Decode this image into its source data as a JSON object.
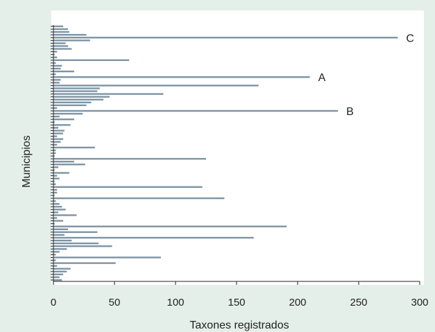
{
  "chart_data": {
    "type": "bar",
    "orientation": "horizontal",
    "xlabel": "Taxones registrados",
    "ylabel": "Municipios",
    "xlim": [
      0,
      300
    ],
    "xticks": [
      0,
      50,
      100,
      150,
      200,
      250,
      300
    ],
    "grid": false,
    "bar_color": "#7d93a3",
    "plot_background": "#ffffff",
    "figure_background": "#e4efe9",
    "values": [
      8,
      12,
      13,
      27,
      282,
      30,
      10,
      12,
      15,
      3,
      1,
      3,
      62,
      2,
      7,
      6,
      17,
      2,
      210,
      6,
      5,
      168,
      38,
      36,
      90,
      46,
      41,
      31,
      27,
      3,
      233,
      24,
      5,
      17,
      1,
      14,
      4,
      9,
      8,
      3,
      8,
      6,
      3,
      34,
      2,
      2,
      1,
      125,
      17,
      26,
      4,
      1,
      13,
      3,
      5,
      1,
      2,
      122,
      3,
      3,
      1,
      140,
      2,
      5,
      7,
      10,
      4,
      19,
      3,
      8,
      1,
      191,
      12,
      36,
      9,
      164,
      15,
      37,
      48,
      11,
      5,
      2,
      88,
      2,
      51,
      3,
      14,
      11,
      8,
      5,
      7
    ],
    "annotations": [
      {
        "text": "C",
        "value": 282
      },
      {
        "text": "A",
        "value": 210
      },
      {
        "text": "B",
        "value": 233
      }
    ]
  }
}
